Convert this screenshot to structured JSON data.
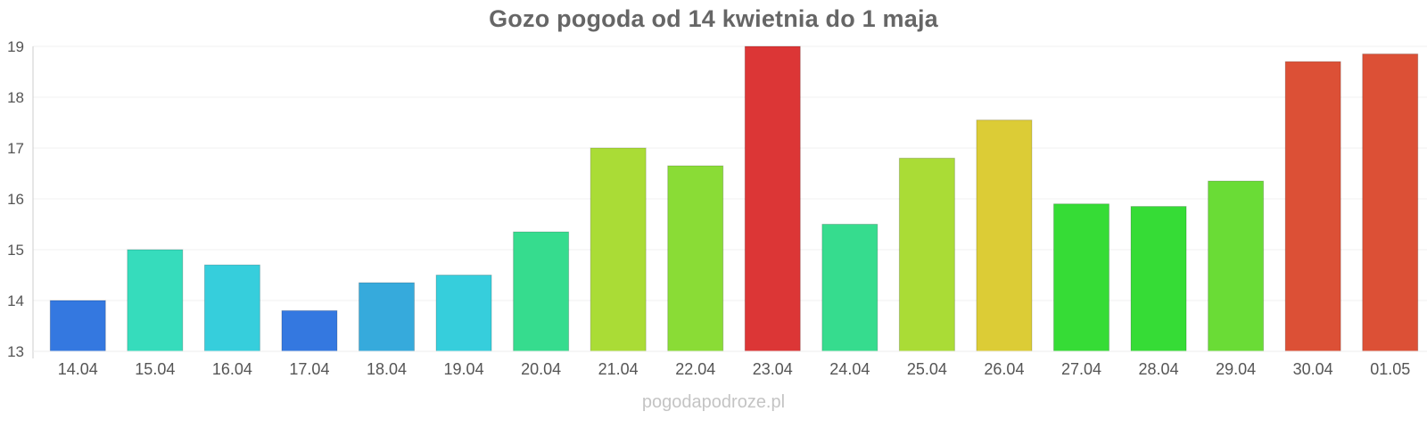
{
  "chart_data": {
    "type": "bar",
    "title": "Gozo pogoda od 14 kwietnia do 1 maja",
    "categories": [
      "14.04",
      "15.04",
      "16.04",
      "17.04",
      "18.04",
      "19.04",
      "20.04",
      "21.04",
      "22.04",
      "23.04",
      "24.04",
      "25.04",
      "26.04",
      "27.04",
      "28.04",
      "29.04",
      "30.04",
      "01.05"
    ],
    "values": [
      14.0,
      15.0,
      14.7,
      13.8,
      14.35,
      14.5,
      15.35,
      17.0,
      16.65,
      19.0,
      15.5,
      16.8,
      17.55,
      15.9,
      15.85,
      16.35,
      18.7,
      18.85
    ],
    "bar_colors": [
      "#3478e0",
      "#36dcbc",
      "#36cedc",
      "#3478e0",
      "#36aadc",
      "#36cedc",
      "#36dc8e",
      "#aadc36",
      "#8adc36",
      "#dc3636",
      "#36dc8e",
      "#aadc36",
      "#dccc36",
      "#36dc36",
      "#36dc36",
      "#6adc36",
      "#dc5036",
      "#dc5036"
    ],
    "yticks": [
      13,
      14,
      15,
      16,
      17,
      18,
      19
    ],
    "ylim": [
      13,
      19
    ],
    "xlabel": "",
    "ylabel": "",
    "grid": true
  },
  "watermark": "pogodapodroze.pl"
}
